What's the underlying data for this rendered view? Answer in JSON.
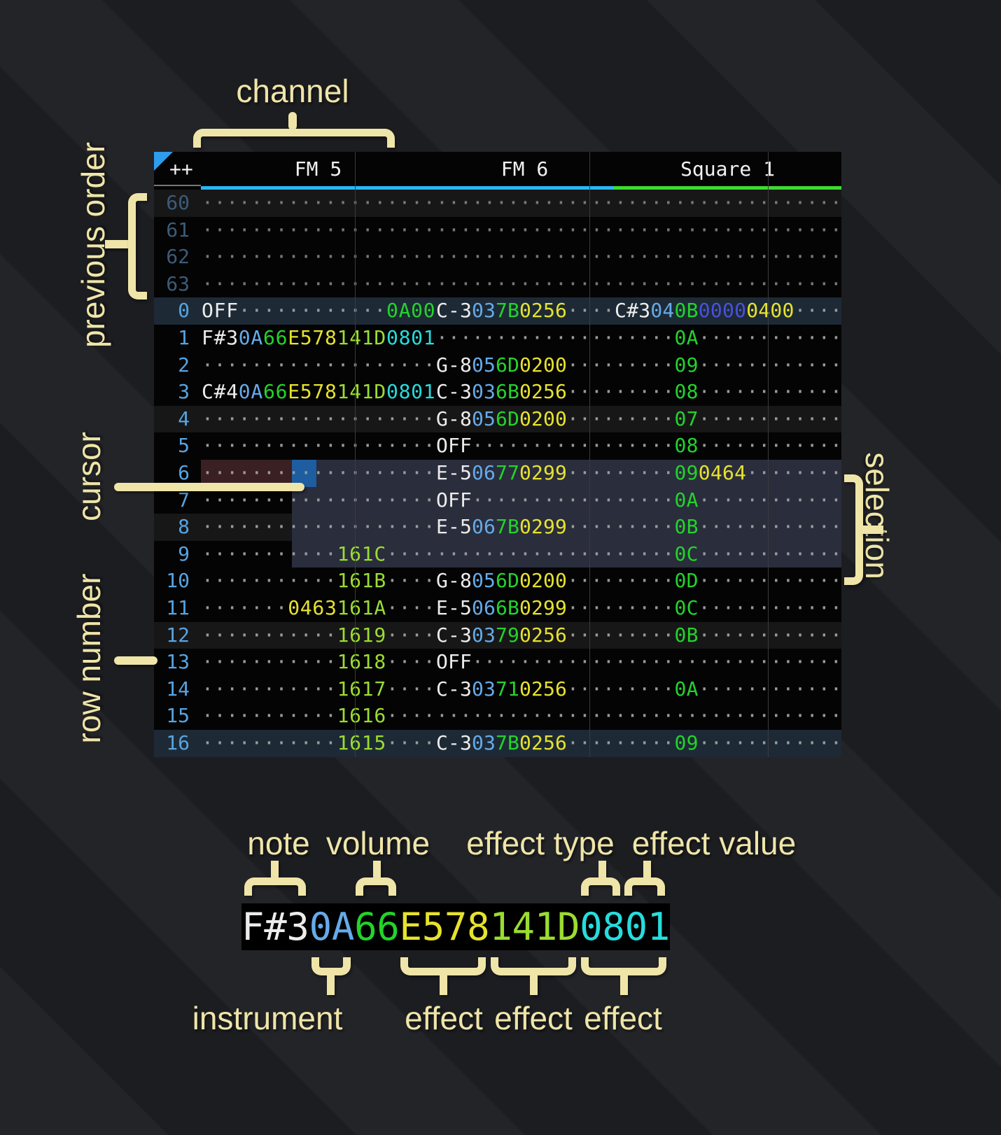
{
  "header": {
    "corner": "++",
    "channels": [
      {
        "name": "FM 5",
        "color": "#29b6f6"
      },
      {
        "name": "FM 6",
        "color": "#29b6f6"
      },
      {
        "name": "Square 1",
        "color": "#3ddc2d"
      }
    ]
  },
  "colors": {
    "note": "#ececec",
    "instrument": "#66aae8",
    "volume": "#23d32b",
    "effect_yellow": "#e6e22e",
    "effect_lime": "#9bdc30",
    "effect_cyan": "#27dcdc",
    "effect_indigo": "#4b50dc",
    "empty_dot": "#9a9a9a",
    "cursor": "#1e5d9f",
    "cursor_row": "#3a2022",
    "selection": "#2a2d3c",
    "row_highlight_major": "#1d2a35",
    "row_highlight_beat": "#171718",
    "annotation": "#efe5a8",
    "order_triangle": "#2e9ded"
  },
  "state": {
    "cursor_row": "6",
    "selection_rows": "6-9"
  },
  "pattern": {
    "rows": [
      {
        "num": "60",
        "dim": true,
        "hl": "beat",
        "fm5": [
          [
            "d",
            19
          ]
        ],
        "fm6": [
          [
            "d",
            15
          ]
        ],
        "sq1": [
          [
            "d",
            19
          ]
        ]
      },
      {
        "num": "61",
        "dim": true,
        "fm5": [
          [
            "d",
            19
          ]
        ],
        "fm6": [
          [
            "d",
            15
          ]
        ],
        "sq1": [
          [
            "d",
            19
          ]
        ]
      },
      {
        "num": "62",
        "dim": true,
        "fm5": [
          [
            "d",
            19
          ]
        ],
        "fm6": [
          [
            "d",
            15
          ]
        ],
        "sq1": [
          [
            "d",
            19
          ]
        ]
      },
      {
        "num": "63",
        "dim": true,
        "fm5": [
          [
            "d",
            19
          ]
        ],
        "fm6": [
          [
            "d",
            15
          ]
        ],
        "sq1": [
          [
            "d",
            19
          ]
        ]
      },
      {
        "num": "0",
        "hl": "major",
        "fm5": [
          [
            "n",
            "OFF"
          ],
          [
            "d",
            12
          ],
          [
            "v",
            "0A00"
          ]
        ],
        "fm6": [
          [
            "n",
            "C-3"
          ],
          [
            "i",
            "03"
          ],
          [
            "v",
            "7B"
          ],
          [
            "e",
            "0256"
          ],
          [
            "d",
            4
          ]
        ],
        "sq1": [
          [
            "n",
            "C#3"
          ],
          [
            "i",
            "04"
          ],
          [
            "v",
            "0B"
          ],
          [
            "p",
            "0000"
          ],
          [
            "e",
            "0400"
          ],
          [
            "d",
            4
          ]
        ]
      },
      {
        "num": "1",
        "fm5": [
          [
            "n",
            "F#3"
          ],
          [
            "i",
            "0A"
          ],
          [
            "v",
            "66"
          ],
          [
            "e",
            "E578"
          ],
          [
            "l",
            "141D"
          ],
          [
            "c",
            "0801"
          ]
        ],
        "fm6": [
          [
            "d",
            15
          ]
        ],
        "sq1": [
          [
            "d",
            5
          ],
          [
            "v",
            "0A"
          ],
          [
            "d",
            12
          ]
        ]
      },
      {
        "num": "2",
        "fm5": [
          [
            "d",
            19
          ]
        ],
        "fm6": [
          [
            "n",
            "G-8"
          ],
          [
            "i",
            "05"
          ],
          [
            "v",
            "6D"
          ],
          [
            "e",
            "0200"
          ],
          [
            "d",
            4
          ]
        ],
        "sq1": [
          [
            "d",
            5
          ],
          [
            "v",
            "09"
          ],
          [
            "d",
            12
          ]
        ]
      },
      {
        "num": "3",
        "fm5": [
          [
            "n",
            "C#4"
          ],
          [
            "i",
            "0A"
          ],
          [
            "v",
            "66"
          ],
          [
            "e",
            "E578"
          ],
          [
            "l",
            "141D"
          ],
          [
            "c",
            "0801"
          ]
        ],
        "fm6": [
          [
            "n",
            "C-3"
          ],
          [
            "i",
            "03"
          ],
          [
            "v",
            "6B"
          ],
          [
            "e",
            "0256"
          ],
          [
            "d",
            4
          ]
        ],
        "sq1": [
          [
            "d",
            5
          ],
          [
            "v",
            "08"
          ],
          [
            "d",
            12
          ]
        ]
      },
      {
        "num": "4",
        "hl": "beat",
        "fm5": [
          [
            "d",
            19
          ]
        ],
        "fm6": [
          [
            "n",
            "G-8"
          ],
          [
            "i",
            "05"
          ],
          [
            "v",
            "6D"
          ],
          [
            "e",
            "0200"
          ],
          [
            "d",
            4
          ]
        ],
        "sq1": [
          [
            "d",
            5
          ],
          [
            "v",
            "07"
          ],
          [
            "d",
            12
          ]
        ]
      },
      {
        "num": "5",
        "fm5": [
          [
            "d",
            19
          ]
        ],
        "fm6": [
          [
            "n",
            "OFF"
          ],
          [
            "d",
            12
          ]
        ],
        "sq1": [
          [
            "d",
            5
          ],
          [
            "v",
            "08"
          ],
          [
            "d",
            12
          ]
        ]
      },
      {
        "num": "6",
        "fm5": [
          [
            "d",
            19
          ]
        ],
        "fm6": [
          [
            "n",
            "E-5"
          ],
          [
            "i",
            "06"
          ],
          [
            "v",
            "77"
          ],
          [
            "e",
            "0299"
          ],
          [
            "d",
            4
          ]
        ],
        "sq1": [
          [
            "d",
            5
          ],
          [
            "v",
            "09"
          ],
          [
            "e",
            "0464"
          ],
          [
            "d",
            8
          ]
        ]
      },
      {
        "num": "7",
        "fm5": [
          [
            "d",
            19
          ]
        ],
        "fm6": [
          [
            "n",
            "OFF"
          ],
          [
            "d",
            12
          ]
        ],
        "sq1": [
          [
            "d",
            5
          ],
          [
            "v",
            "0A"
          ],
          [
            "d",
            12
          ]
        ]
      },
      {
        "num": "8",
        "hl": "beat",
        "fm5": [
          [
            "d",
            19
          ]
        ],
        "fm6": [
          [
            "n",
            "E-5"
          ],
          [
            "i",
            "06"
          ],
          [
            "v",
            "7B"
          ],
          [
            "e",
            "0299"
          ],
          [
            "d",
            4
          ]
        ],
        "sq1": [
          [
            "d",
            5
          ],
          [
            "v",
            "0B"
          ],
          [
            "d",
            12
          ]
        ]
      },
      {
        "num": "9",
        "fm5": [
          [
            "d",
            11
          ],
          [
            "l",
            "161C"
          ],
          [
            "d",
            4
          ]
        ],
        "fm6": [
          [
            "d",
            15
          ]
        ],
        "sq1": [
          [
            "d",
            5
          ],
          [
            "v",
            "0C"
          ],
          [
            "d",
            12
          ]
        ]
      },
      {
        "num": "10",
        "fm5": [
          [
            "d",
            11
          ],
          [
            "l",
            "161B"
          ],
          [
            "d",
            4
          ]
        ],
        "fm6": [
          [
            "n",
            "G-8"
          ],
          [
            "i",
            "05"
          ],
          [
            "v",
            "6D"
          ],
          [
            "e",
            "0200"
          ],
          [
            "d",
            4
          ]
        ],
        "sq1": [
          [
            "d",
            5
          ],
          [
            "v",
            "0D"
          ],
          [
            "d",
            12
          ]
        ]
      },
      {
        "num": "11",
        "fm5": [
          [
            "d",
            7
          ],
          [
            "e",
            "0463"
          ],
          [
            "l",
            "161A"
          ],
          [
            "d",
            4
          ]
        ],
        "fm6": [
          [
            "n",
            "E-5"
          ],
          [
            "i",
            "06"
          ],
          [
            "v",
            "6B"
          ],
          [
            "e",
            "0299"
          ],
          [
            "d",
            4
          ]
        ],
        "sq1": [
          [
            "d",
            5
          ],
          [
            "v",
            "0C"
          ],
          [
            "d",
            12
          ]
        ]
      },
      {
        "num": "12",
        "hl": "beat",
        "fm5": [
          [
            "d",
            11
          ],
          [
            "l",
            "1619"
          ],
          [
            "d",
            4
          ]
        ],
        "fm6": [
          [
            "n",
            "C-3"
          ],
          [
            "i",
            "03"
          ],
          [
            "v",
            "79"
          ],
          [
            "e",
            "0256"
          ],
          [
            "d",
            4
          ]
        ],
        "sq1": [
          [
            "d",
            5
          ],
          [
            "v",
            "0B"
          ],
          [
            "d",
            12
          ]
        ]
      },
      {
        "num": "13",
        "fm5": [
          [
            "d",
            11
          ],
          [
            "l",
            "1618"
          ],
          [
            "d",
            4
          ]
        ],
        "fm6": [
          [
            "n",
            "OFF"
          ],
          [
            "d",
            12
          ]
        ],
        "sq1": [
          [
            "d",
            19
          ]
        ]
      },
      {
        "num": "14",
        "fm5": [
          [
            "d",
            11
          ],
          [
            "l",
            "1617"
          ],
          [
            "d",
            4
          ]
        ],
        "fm6": [
          [
            "n",
            "C-3"
          ],
          [
            "i",
            "03"
          ],
          [
            "v",
            "71"
          ],
          [
            "e",
            "0256"
          ],
          [
            "d",
            4
          ]
        ],
        "sq1": [
          [
            "d",
            5
          ],
          [
            "v",
            "0A"
          ],
          [
            "d",
            12
          ]
        ]
      },
      {
        "num": "15",
        "fm5": [
          [
            "d",
            11
          ],
          [
            "l",
            "1616"
          ],
          [
            "d",
            4
          ]
        ],
        "fm6": [
          [
            "d",
            15
          ]
        ],
        "sq1": [
          [
            "d",
            19
          ]
        ]
      },
      {
        "num": "16",
        "hl": "major",
        "fm5": [
          [
            "d",
            11
          ],
          [
            "l",
            "1615"
          ],
          [
            "d",
            4
          ]
        ],
        "fm6": [
          [
            "n",
            "C-3"
          ],
          [
            "i",
            "03"
          ],
          [
            "v",
            "7B"
          ],
          [
            "e",
            "0256"
          ],
          [
            "d",
            4
          ]
        ],
        "sq1": [
          [
            "d",
            5
          ],
          [
            "v",
            "09"
          ],
          [
            "d",
            12
          ]
        ]
      }
    ]
  },
  "annotations": {
    "channel": "channel",
    "previous_order": "previous order",
    "cursor": "cursor",
    "row_number": "row number",
    "selection": "selection",
    "note": "note",
    "volume": "volume",
    "effect_type": "effect type",
    "effect_value": "effect value",
    "instrument": "instrument",
    "effects": [
      "effect",
      "effect",
      "effect"
    ],
    "example": [
      [
        "n",
        "F#3"
      ],
      [
        "i",
        "0A"
      ],
      [
        "v",
        "66"
      ],
      [
        "e",
        "E578"
      ],
      [
        "l",
        "141D"
      ],
      [
        "c",
        "0801"
      ]
    ]
  }
}
